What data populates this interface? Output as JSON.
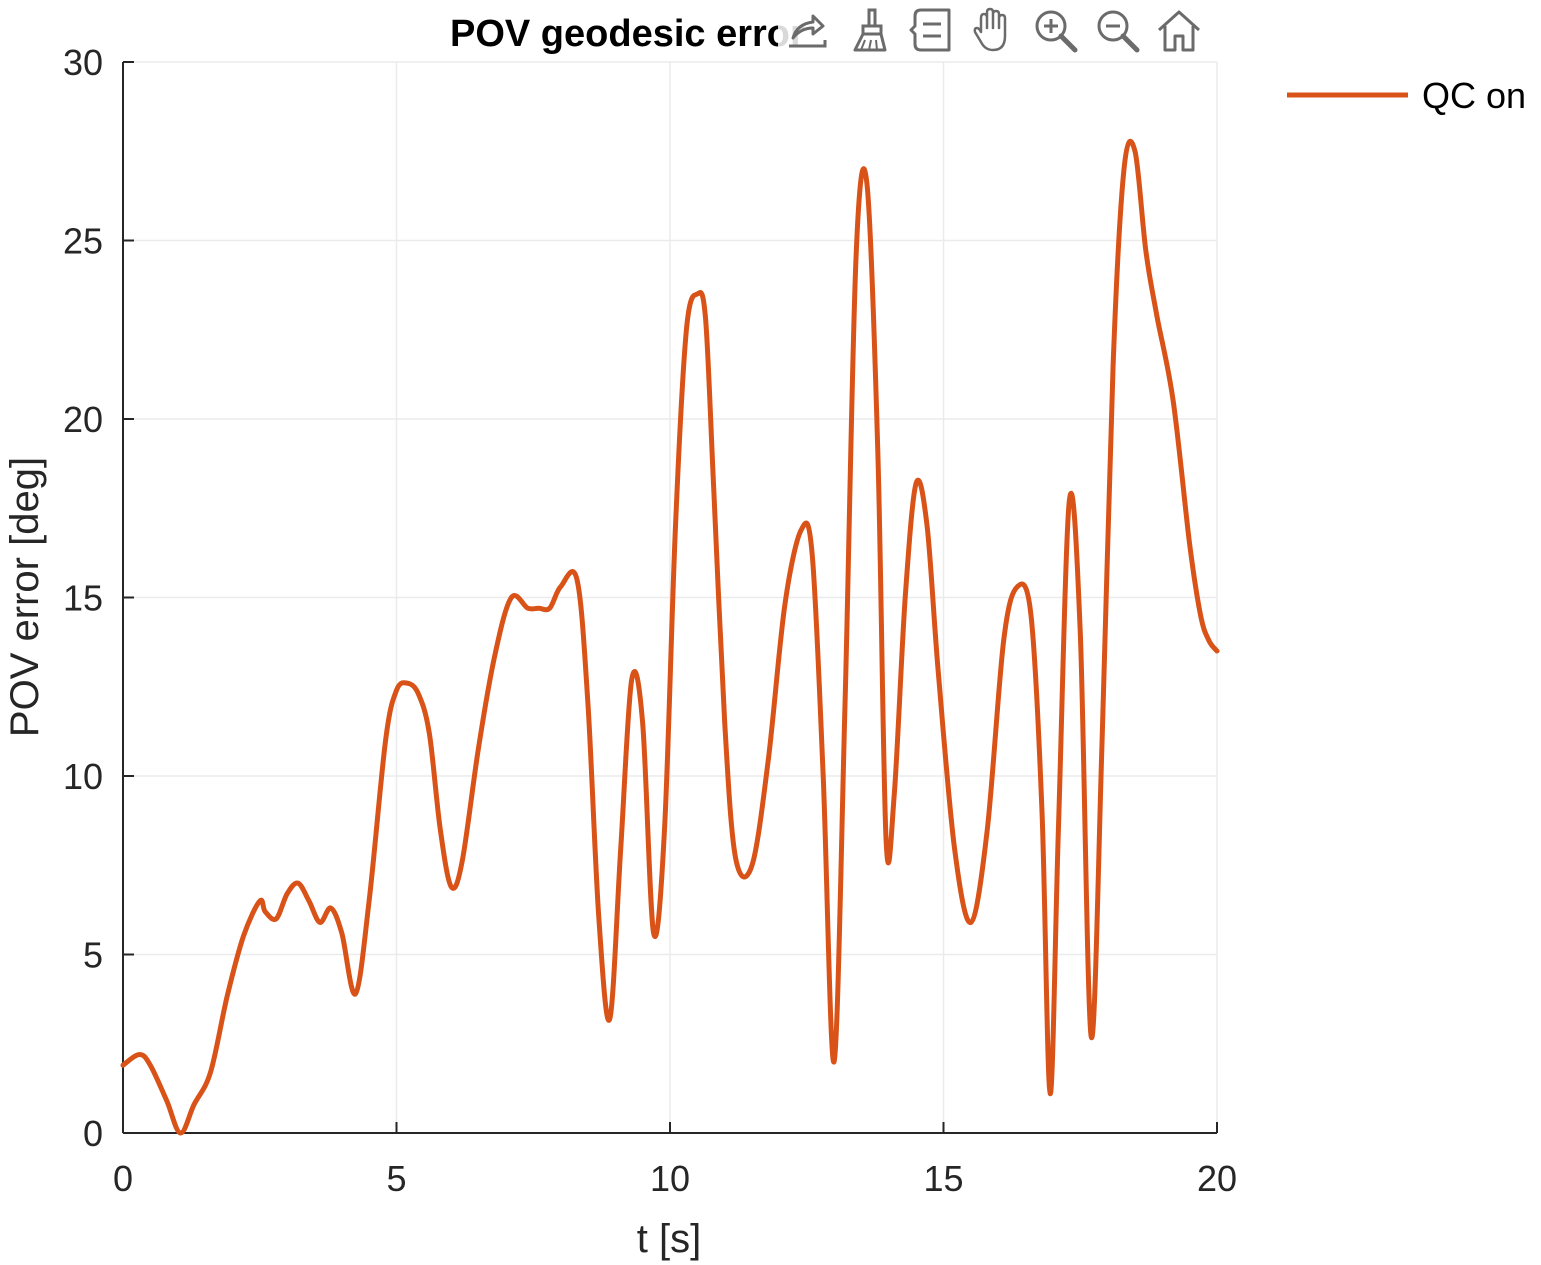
{
  "chart_data": {
    "type": "line",
    "title": "POV geodesic error",
    "xlabel": "t [s]",
    "ylabel": "POV error [deg]",
    "xlim": [
      0,
      20
    ],
    "ylim": [
      0,
      30
    ],
    "xticks": [
      0,
      5,
      10,
      15,
      20
    ],
    "yticks": [
      0,
      5,
      10,
      15,
      20,
      25,
      30
    ],
    "grid": true,
    "legend_location": "outside-top-right",
    "series": [
      {
        "name": "QC on",
        "color": "#D95319",
        "x": [
          0,
          0.3,
          0.5,
          0.8,
          1.05,
          1.3,
          1.6,
          1.9,
          2.2,
          2.5,
          2.6,
          2.8,
          3.0,
          3.2,
          3.4,
          3.6,
          3.8,
          4.0,
          4.25,
          4.5,
          4.8,
          5.0,
          5.2,
          5.4,
          5.6,
          5.8,
          6.0,
          6.2,
          6.5,
          6.8,
          7.1,
          7.4,
          7.6,
          7.8,
          8.0,
          8.3,
          8.5,
          8.7,
          8.9,
          9.1,
          9.3,
          9.5,
          9.7,
          9.9,
          10.1,
          10.3,
          10.5,
          10.65,
          10.8,
          11.0,
          11.2,
          11.5,
          11.8,
          12.1,
          12.4,
          12.6,
          12.8,
          13.0,
          13.2,
          13.4,
          13.6,
          13.8,
          13.95,
          14.1,
          14.3,
          14.5,
          14.7,
          14.9,
          15.2,
          15.5,
          15.8,
          16.1,
          16.35,
          16.6,
          16.8,
          16.95,
          17.1,
          17.3,
          17.5,
          17.7,
          17.9,
          18.1,
          18.3,
          18.5,
          18.7,
          18.9,
          19.2,
          19.5,
          19.7,
          19.85,
          20.0
        ],
        "y": [
          1.9,
          2.2,
          1.9,
          0.9,
          0.0,
          0.8,
          1.7,
          3.8,
          5.5,
          6.5,
          6.2,
          6.0,
          6.7,
          7.0,
          6.5,
          5.9,
          6.3,
          5.6,
          3.9,
          6.5,
          11.0,
          12.4,
          12.6,
          12.3,
          11.2,
          8.5,
          6.9,
          7.6,
          10.8,
          13.4,
          15.0,
          14.7,
          14.7,
          14.7,
          15.3,
          15.5,
          12.0,
          6.0,
          3.2,
          8.0,
          12.7,
          11.5,
          5.6,
          8.5,
          17.0,
          22.5,
          23.5,
          22.8,
          18.0,
          11.5,
          7.7,
          7.5,
          10.5,
          14.8,
          16.9,
          16.2,
          10.0,
          2.0,
          12.0,
          24.5,
          26.6,
          19.0,
          8.2,
          9.5,
          15.0,
          18.2,
          17.0,
          13.0,
          8.0,
          5.9,
          8.5,
          13.8,
          15.3,
          14.5,
          9.0,
          1.1,
          8.5,
          17.7,
          14.0,
          2.7,
          11.0,
          21.5,
          27.0,
          27.5,
          24.7,
          22.9,
          20.5,
          16.5,
          14.5,
          13.8,
          13.5
        ]
      }
    ]
  },
  "toolbar": {
    "icons": [
      "export-icon",
      "brush-icon",
      "datatip-icon",
      "pan-icon",
      "zoom-in-icon",
      "zoom-out-icon",
      "home-icon"
    ]
  }
}
